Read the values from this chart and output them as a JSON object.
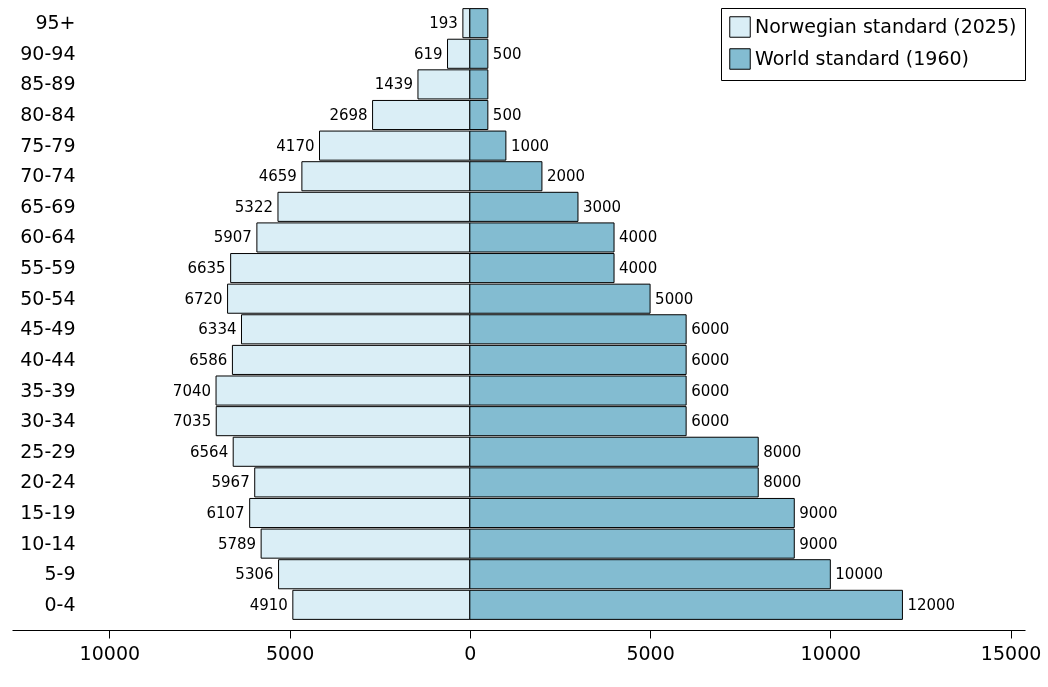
{
  "chart_data": {
    "type": "bar",
    "orientation": "horizontal",
    "categories": [
      "95+",
      "90-94",
      "85-89",
      "80-84",
      "75-79",
      "70-74",
      "65-69",
      "60-64",
      "55-59",
      "50-54",
      "45-49",
      "40-44",
      "35-39",
      "30-34",
      "25-29",
      "20-24",
      "15-19",
      "10-14",
      "5-9",
      "0-4"
    ],
    "series": [
      {
        "name": "Norwegian standard (2025)",
        "color": "#daeef6",
        "values": [
          193,
          619,
          1439,
          2698,
          4170,
          4659,
          5322,
          5907,
          6635,
          6720,
          6334,
          6586,
          7040,
          7035,
          6564,
          5967,
          6107,
          5789,
          5306,
          4910
        ],
        "base": [
          -193,
          -619,
          -1439,
          -2698,
          -4170,
          -4659,
          -5322,
          -5907,
          -6635,
          -6720,
          -6334,
          -6586,
          -7040,
          -7035,
          -6564,
          -5967,
          -6107,
          -5789,
          -5306,
          -4910
        ],
        "value_labels": [
          "193",
          "619",
          "1439",
          "2698",
          "4170",
          "4659",
          "5322",
          "5907",
          "6635",
          "6720",
          "6334",
          "6586",
          "7040",
          "7035",
          "6564",
          "5967",
          "6107",
          "5789",
          "5306",
          "4910"
        ]
      },
      {
        "name": "World standard (1960)",
        "color": "#83bcd1",
        "values": [
          500,
          500,
          500,
          500,
          1000,
          2000,
          3000,
          4000,
          4000,
          5000,
          6000,
          6000,
          6000,
          6000,
          8000,
          8000,
          9000,
          9000,
          10000,
          12000
        ],
        "value_labels": [
          null,
          "500",
          null,
          "500",
          "1000",
          "2000",
          "3000",
          "4000",
          "4000",
          "5000",
          "6000",
          "6000",
          "6000",
          "6000",
          "8000",
          "8000",
          "9000",
          "9000",
          "10000",
          "12000"
        ]
      }
    ],
    "xlim": [
      -12700,
      15400
    ],
    "xticks": [
      {
        "value": -10000,
        "label": "10000"
      },
      {
        "value": -5000,
        "label": "5000"
      },
      0,
      5000,
      10000,
      15000
    ],
    "grid": false,
    "legend": "top right"
  }
}
